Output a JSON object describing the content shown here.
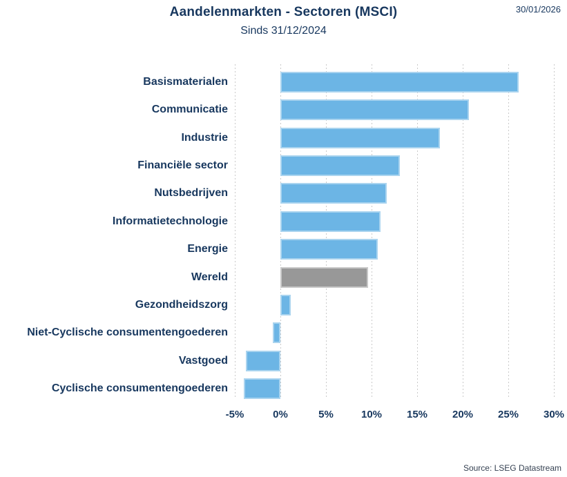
{
  "header": {
    "title": "Aandelenmarkten - Sectoren (MSCI)",
    "subtitle": "Sinds 31/12/2024",
    "date": "30/01/2026"
  },
  "footer": {
    "source": "Source: LSEG Datastream"
  },
  "colors": {
    "text_navy": "#17375E",
    "bar_blue": "#6CB5E5",
    "bar_blue_border": "#AAD4EF",
    "bar_gray": "#989898",
    "bar_gray_border": "#C8C8C8",
    "gridline": "#C9C9C9",
    "source_text": "#333F50"
  },
  "chart_data": {
    "type": "bar",
    "orientation": "horizontal",
    "title": "Aandelenmarkten - Sectoren (MSCI)",
    "subtitle": "Sinds 31/12/2024",
    "unit": "%",
    "categories": [
      "Basismaterialen",
      "Communicatie",
      "Industrie",
      "Financiële sector",
      "Nutsbedrijven",
      "Informatietechnologie",
      "Energie",
      "Wereld",
      "Gezondheidszorg",
      "Niet-Cyclische consumentengoederen",
      "Vastgoed",
      "Cyclische consumentengoederen"
    ],
    "values": [
      26.1,
      20.7,
      17.5,
      13.1,
      11.7,
      11.0,
      10.7,
      9.6,
      1.1,
      -0.8,
      -3.8,
      -4.0
    ],
    "highlight_category": "Wereld",
    "xlim": [
      -5,
      30
    ],
    "xticks": [
      -5,
      0,
      5,
      10,
      15,
      20,
      25,
      30
    ],
    "xtick_labels": [
      "-5%",
      "0%",
      "5%",
      "10%",
      "15%",
      "20%",
      "25%",
      "30%"
    ],
    "grid": "vertical-dotted",
    "legend": false
  }
}
